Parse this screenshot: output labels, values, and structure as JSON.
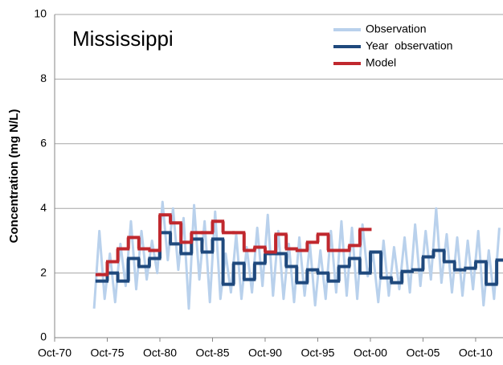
{
  "chart_data": {
    "type": "line",
    "annotation": "Mississippi",
    "ylabel": "Concentration  (mg N/L)",
    "xlim": [
      1970.75,
      2013.35
    ],
    "xticks": [
      {
        "value": 1970.75,
        "label": "Oct-70"
      },
      {
        "value": 1975.75,
        "label": "Oct-75"
      },
      {
        "value": 1980.75,
        "label": "Oct-80"
      },
      {
        "value": 1985.75,
        "label": "Oct-85"
      },
      {
        "value": 1990.75,
        "label": "Oct-90"
      },
      {
        "value": 1995.75,
        "label": "Oct-95"
      },
      {
        "value": 2000.75,
        "label": "Oct-00"
      },
      {
        "value": 2005.75,
        "label": "Oct-05"
      },
      {
        "value": 2010.75,
        "label": "Oct-10"
      }
    ],
    "ylim": [
      0,
      10
    ],
    "yticks": [
      0,
      2,
      4,
      6,
      8,
      10
    ],
    "grid": true,
    "legend": "top-right",
    "series": [
      {
        "name": "Observation",
        "color": "#b9d1ec",
        "step": false,
        "x": [
          1974.5,
          1975,
          1975.5,
          1976,
          1976.5,
          1977,
          1977.5,
          1978,
          1978.5,
          1979,
          1979.5,
          1980,
          1980.5,
          1981,
          1981.5,
          1982,
          1982.5,
          1983,
          1983.5,
          1984,
          1984.5,
          1985,
          1985.5,
          1986,
          1986.5,
          1987,
          1987.5,
          1988,
          1988.5,
          1989,
          1989.5,
          1990,
          1990.5,
          1991,
          1991.5,
          1992,
          1992.5,
          1993,
          1993.5,
          1994,
          1994.5,
          1995,
          1995.5,
          1996,
          1996.5,
          1997,
          1997.5,
          1998,
          1998.5,
          1999,
          1999.5,
          2000,
          2000.5,
          2001,
          2001.5,
          2002,
          2002.5,
          2003,
          2003.5,
          2004,
          2004.5,
          2005,
          2005.5,
          2006,
          2006.5,
          2007,
          2007.5,
          2008,
          2008.5,
          2009,
          2009.5,
          2010,
          2010.5,
          2011,
          2011.5,
          2012,
          2012.5,
          2013
        ],
        "values": [
          0.9,
          3.3,
          1.2,
          2.6,
          1.1,
          2.9,
          1.6,
          3.6,
          1.5,
          3.3,
          1.8,
          3.0,
          2.0,
          4.2,
          2.4,
          4.0,
          2.1,
          3.7,
          0.9,
          4.1,
          1.8,
          3.6,
          1.1,
          3.9,
          1.2,
          2.6,
          1.4,
          3.2,
          1.2,
          2.8,
          1.4,
          3.4,
          1.6,
          3.8,
          1.3,
          3.3,
          1.2,
          2.9,
          1.1,
          3.1,
          1.3,
          2.9,
          1.0,
          2.7,
          1.2,
          3.3,
          1.4,
          3.6,
          1.3,
          3.4,
          1.2,
          3.5,
          1.9,
          2.6,
          1.1,
          3.0,
          1.3,
          2.8,
          1.5,
          3.1,
          1.4,
          3.5,
          1.6,
          3.3,
          1.8,
          4.0,
          1.7,
          3.2,
          1.4,
          3.1,
          1.3,
          3.0,
          1.5,
          3.3,
          1.0,
          2.7,
          1.2,
          3.4
        ]
      },
      {
        "name": "Year  observation",
        "color": "#1f497d",
        "step": true,
        "x": [
          1974.75,
          1975.75,
          1976.75,
          1977.75,
          1978.75,
          1979.75,
          1980.75,
          1981.75,
          1982.75,
          1983.75,
          1984.75,
          1985.75,
          1986.75,
          1987.75,
          1988.75,
          1989.75,
          1990.75,
          1991.75,
          1992.75,
          1993.75,
          1994.75,
          1995.75,
          1996.75,
          1997.75,
          1998.75,
          1999.75,
          2000.75,
          2001.75,
          2002.75,
          2003.75,
          2004.75,
          2005.75,
          2006.75,
          2007.75,
          2008.75,
          2009.75,
          2010.75,
          2011.75,
          2012.75
        ],
        "values": [
          1.75,
          2.0,
          1.75,
          2.45,
          2.2,
          2.45,
          3.25,
          2.9,
          2.6,
          3.05,
          2.65,
          3.05,
          1.65,
          2.3,
          1.8,
          2.3,
          2.6,
          2.6,
          2.2,
          1.7,
          2.1,
          2.0,
          1.75,
          2.2,
          2.45,
          2.0,
          2.65,
          1.85,
          1.7,
          2.05,
          2.1,
          2.5,
          2.7,
          2.35,
          2.1,
          2.15,
          2.35,
          1.65,
          2.4
        ]
      },
      {
        "name": "Model",
        "color": "#c0282e",
        "step": true,
        "x": [
          1974.75,
          1975.75,
          1976.75,
          1977.75,
          1978.75,
          1979.75,
          1980.75,
          1981.75,
          1982.75,
          1983.75,
          1984.75,
          1985.75,
          1986.75,
          1987.75,
          1988.75,
          1989.75,
          1990.75,
          1991.75,
          1992.75,
          1993.75,
          1994.75,
          1995.75,
          1996.75,
          1997.75,
          1998.75,
          1999.75
        ],
        "values": [
          1.95,
          2.35,
          2.75,
          3.1,
          2.75,
          2.7,
          3.8,
          3.55,
          2.95,
          3.25,
          3.25,
          3.6,
          3.25,
          3.25,
          2.7,
          2.8,
          2.65,
          3.2,
          2.75,
          2.7,
          2.95,
          3.2,
          2.7,
          2.7,
          2.85,
          3.35
        ]
      }
    ]
  }
}
